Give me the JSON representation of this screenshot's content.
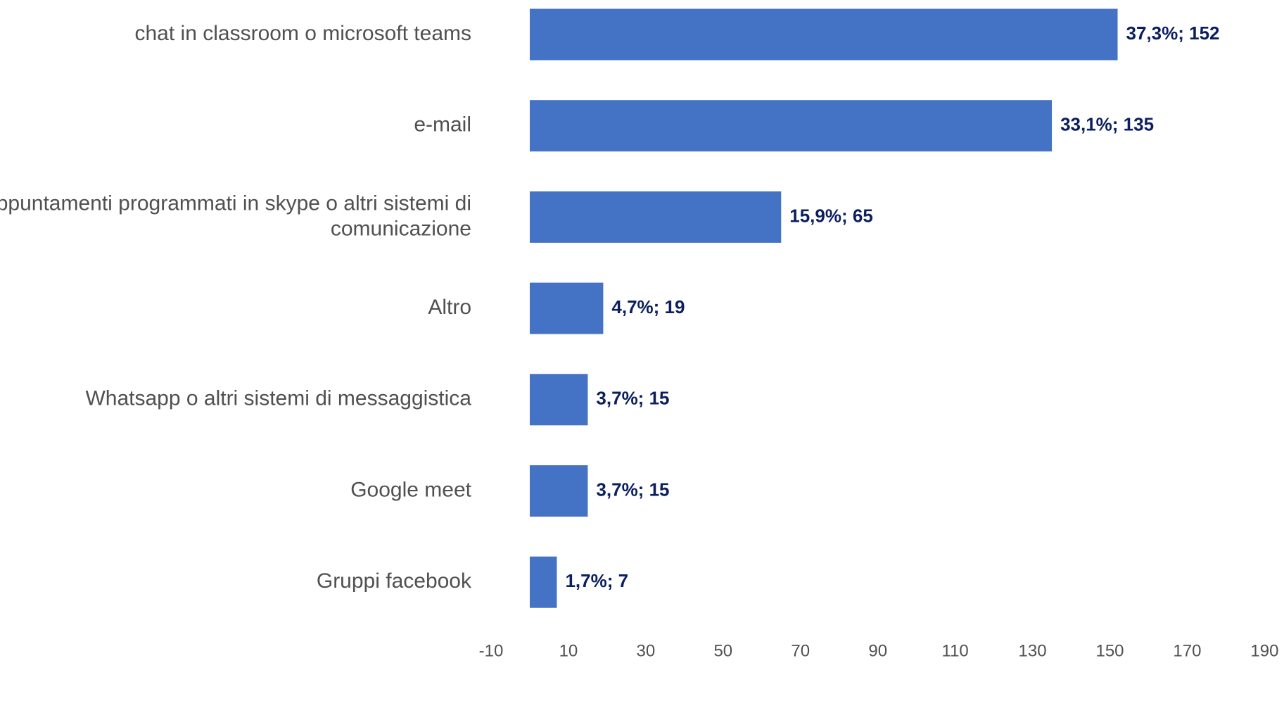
{
  "chart_data": {
    "type": "bar",
    "orientation": "horizontal",
    "categories": [
      "chat in classroom o microsoft teams",
      "e-mail",
      "Appuntamenti programmati in skype o altri sistemi di comunicazione",
      "Altro",
      "Whatsapp o altri sistemi di messaggistica",
      "Google meet",
      "Gruppi facebook"
    ],
    "category_lines": [
      [
        "chat in classroom o microsoft teams"
      ],
      [
        "e-mail"
      ],
      [
        "Appuntamenti programmati in skype o altri sistemi di",
        "comunicazione"
      ],
      [
        "Altro"
      ],
      [
        "Whatsapp o altri sistemi di messaggistica"
      ],
      [
        "Google meet"
      ],
      [
        "Gruppi facebook"
      ]
    ],
    "values": [
      152,
      135,
      65,
      19,
      15,
      15,
      7
    ],
    "data_labels": [
      "37,3%; 152",
      "33,1%; 135",
      "15,9%; 65",
      "4,7%; 19",
      "3,7%; 15",
      "3,7%; 15",
      "1,7%; 7"
    ],
    "title": "",
    "xlabel": "",
    "ylabel": "",
    "xlim": [
      -10,
      190
    ],
    "x_ticks": [
      -10,
      10,
      30,
      50,
      70,
      90,
      110,
      130,
      150,
      170,
      190
    ],
    "x_tick_labels": [
      "-10",
      "10",
      "30",
      "50",
      "70",
      "90",
      "110",
      "130",
      "150",
      "170",
      "190"
    ],
    "grid": false,
    "legend": "none",
    "bar_color": "#4472c4",
    "data_label_color": "#0b1f5e",
    "category_label_color": "#505050"
  }
}
